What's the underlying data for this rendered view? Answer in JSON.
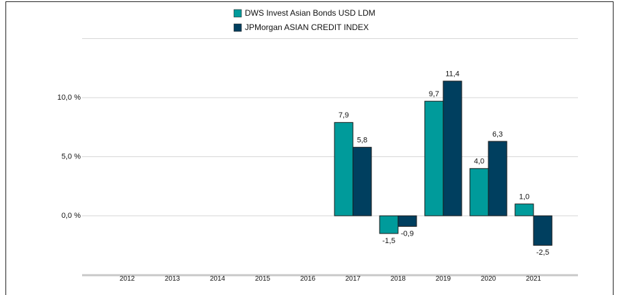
{
  "chart_data": {
    "type": "bar",
    "categories": [
      "2012",
      "2013",
      "2014",
      "2015",
      "2016",
      "2017",
      "2018",
      "2019",
      "2020",
      "2021"
    ],
    "series": [
      {
        "name": "DWS Invest Asian Bonds  USD LDM",
        "color": "#009b9b",
        "values": [
          null,
          null,
          null,
          null,
          null,
          7.9,
          -1.5,
          9.7,
          4.0,
          1.0
        ],
        "value_labels": [
          null,
          null,
          null,
          null,
          null,
          "7,9",
          "-1,5",
          "9,7",
          "4,0",
          "1,0"
        ]
      },
      {
        "name": "JPMorgan ASIAN CREDIT INDEX",
        "color": "#003f5f",
        "values": [
          null,
          null,
          null,
          null,
          null,
          5.8,
          -0.9,
          11.4,
          6.3,
          -2.5
        ],
        "value_labels": [
          null,
          null,
          null,
          null,
          null,
          "5,8",
          "-0,9",
          "11,4",
          "6,3",
          "-2,5"
        ]
      }
    ],
    "ylim": [
      -5,
      15
    ],
    "yticks": [
      {
        "value": 0,
        "label": "0,0 %"
      },
      {
        "value": 5,
        "label": "5,0 %"
      },
      {
        "value": 10,
        "label": "10,0 %"
      }
    ],
    "grid": true,
    "legend": "top"
  }
}
